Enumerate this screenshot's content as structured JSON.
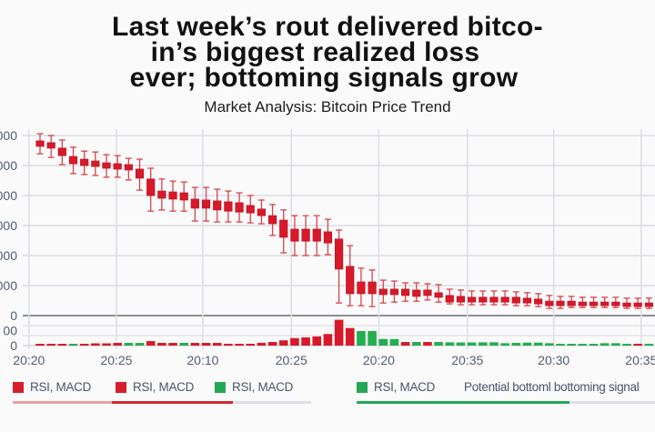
{
  "header": {
    "title_lines": [
      "Last week’s rout delivered bitco-",
      "in’s biggest realized loss",
      "ever; bottoming signals grow"
    ],
    "subtitle": "Market Analysis: Bitcoin Price Trend"
  },
  "colors": {
    "down": "#d7192a",
    "down_border": "#bf1422",
    "wick": "#d6434c",
    "up": "#23ae4f",
    "grid": "#dcdde6",
    "separator": "#8c8f97",
    "legend_red": "#d51f2b",
    "legend_green": "#24a853"
  },
  "legend": {
    "items": [
      {
        "label": "RSI, MACD",
        "color": "#d51f2b"
      },
      {
        "label": "RSI, MACD",
        "color": "#d51f2b"
      },
      {
        "label": "RSI, MACD",
        "color": "#24a853"
      },
      {
        "label": "RSI, MACD",
        "color": "#24a853"
      }
    ],
    "note": "Potential bottoml bottoming signal",
    "indicator_bars": [
      {
        "segments": [
          {
            "color": "#e8a1a6",
            "fraction": 0.333
          },
          {
            "color": "#d42a30",
            "fraction": 0.404
          },
          {
            "color": "#dedee4",
            "fraction": 0.263
          }
        ]
      },
      {
        "segments": [
          {
            "color": "#23a955",
            "fraction": 0.713
          },
          {
            "color": "#dedee4",
            "fraction": 0.287
          }
        ]
      }
    ]
  },
  "chart_data": {
    "type": "bar",
    "variant": "candlestick-with-volume",
    "title": "Last week’s rout delivered bitcoin’s biggest realized loss ever; bottoming signals grow",
    "subtitle": "Market Analysis: Bitcoin Price Trend",
    "grid": true,
    "xlim": [
      -1.6,
      55.4
    ],
    "x_ticks": [
      {
        "at": -1,
        "label": "20:20"
      },
      {
        "at": 6.9,
        "label": "20:25"
      },
      {
        "at": 14.7,
        "label": "20:10"
      },
      {
        "at": 22.7,
        "label": "20:25"
      },
      {
        "at": 30.6,
        "label": "20:20"
      },
      {
        "at": 38.6,
        "label": "20:35"
      },
      {
        "at": 46.4,
        "label": "20:30"
      },
      {
        "at": 54.3,
        "label": "20:35"
      }
    ],
    "price_axis": {
      "unit_note": "tick labels truncated at left edge; values in grid units",
      "ylim": [
        0,
        6.3
      ],
      "ticks": [
        {
          "value": 6,
          "label": "000"
        },
        {
          "value": 5,
          "label": "000"
        },
        {
          "value": 4,
          "label": "000"
        },
        {
          "value": 3,
          "label": "000"
        },
        {
          "value": 2,
          "label": "000"
        },
        {
          "value": 1,
          "label": "000"
        },
        {
          "value": 0,
          "label": "0"
        }
      ]
    },
    "volume_axis": {
      "ylim": [
        0,
        2
      ],
      "ticks": [
        {
          "value": 1,
          "label": "00"
        },
        {
          "value": 0,
          "label": "0"
        }
      ],
      "gridlines": [
        0.67,
        1.33
      ]
    },
    "candles_ohlc": [
      [
        5.82,
        6.06,
        5.39,
        5.64
      ],
      [
        5.76,
        6.0,
        5.27,
        5.58
      ],
      [
        5.58,
        5.85,
        5.03,
        5.33
      ],
      [
        5.3,
        5.61,
        4.73,
        5.06
      ],
      [
        5.21,
        5.48,
        4.7,
        5.0
      ],
      [
        5.15,
        5.45,
        4.67,
        4.97
      ],
      [
        5.09,
        5.36,
        4.61,
        4.91
      ],
      [
        5.06,
        5.33,
        4.61,
        4.88
      ],
      [
        5.03,
        5.24,
        4.52,
        4.85
      ],
      [
        4.88,
        5.21,
        4.18,
        4.58
      ],
      [
        4.55,
        4.91,
        3.48,
        4.0
      ],
      [
        4.15,
        4.55,
        3.52,
        3.91
      ],
      [
        4.12,
        4.48,
        3.48,
        3.88
      ],
      [
        4.09,
        4.45,
        3.48,
        3.85
      ],
      [
        3.88,
        4.27,
        3.15,
        3.58
      ],
      [
        3.85,
        4.27,
        3.15,
        3.58
      ],
      [
        3.82,
        4.21,
        3.12,
        3.52
      ],
      [
        3.79,
        4.15,
        3.12,
        3.48
      ],
      [
        3.76,
        4.09,
        3.12,
        3.45
      ],
      [
        3.67,
        4.0,
        3.09,
        3.42
      ],
      [
        3.55,
        3.85,
        3.06,
        3.33
      ],
      [
        3.33,
        3.7,
        2.67,
        3.06
      ],
      [
        3.18,
        3.52,
        2.09,
        2.61
      ],
      [
        2.88,
        3.33,
        2.0,
        2.48
      ],
      [
        2.88,
        3.33,
        2.0,
        2.48
      ],
      [
        2.88,
        3.33,
        2.0,
        2.48
      ],
      [
        2.79,
        3.21,
        2.03,
        2.42
      ],
      [
        2.55,
        2.85,
        0.42,
        1.55
      ],
      [
        1.64,
        2.33,
        0.33,
        0.73
      ],
      [
        1.12,
        1.58,
        0.33,
        0.73
      ],
      [
        1.12,
        1.52,
        0.3,
        0.73
      ],
      [
        0.88,
        1.18,
        0.42,
        0.7
      ],
      [
        0.88,
        1.15,
        0.45,
        0.7
      ],
      [
        0.88,
        1.09,
        0.48,
        0.67
      ],
      [
        0.85,
        1.09,
        0.48,
        0.64
      ],
      [
        0.85,
        1.06,
        0.52,
        0.67
      ],
      [
        0.76,
        1.03,
        0.45,
        0.61
      ],
      [
        0.67,
        0.88,
        0.39,
        0.45
      ],
      [
        0.64,
        0.85,
        0.36,
        0.45
      ],
      [
        0.61,
        0.82,
        0.36,
        0.45
      ],
      [
        0.61,
        0.82,
        0.36,
        0.45
      ],
      [
        0.61,
        0.82,
        0.36,
        0.45
      ],
      [
        0.61,
        0.82,
        0.36,
        0.45
      ],
      [
        0.61,
        0.79,
        0.33,
        0.42
      ],
      [
        0.58,
        0.76,
        0.33,
        0.42
      ],
      [
        0.55,
        0.73,
        0.3,
        0.39
      ],
      [
        0.48,
        0.67,
        0.24,
        0.33
      ],
      [
        0.48,
        0.64,
        0.24,
        0.33
      ],
      [
        0.48,
        0.64,
        0.27,
        0.33
      ],
      [
        0.45,
        0.61,
        0.27,
        0.33
      ],
      [
        0.45,
        0.61,
        0.27,
        0.33
      ],
      [
        0.45,
        0.61,
        0.27,
        0.33
      ],
      [
        0.45,
        0.61,
        0.27,
        0.33
      ],
      [
        0.42,
        0.58,
        0.24,
        0.3
      ],
      [
        0.42,
        0.58,
        0.24,
        0.3
      ],
      [
        0.42,
        0.58,
        0.24,
        0.3
      ]
    ],
    "volume": [
      {
        "v": 0.12,
        "dir": "down"
      },
      {
        "v": 0.12,
        "dir": "down"
      },
      {
        "v": 0.12,
        "dir": "down"
      },
      {
        "v": 0.12,
        "dir": "up"
      },
      {
        "v": 0.12,
        "dir": "down"
      },
      {
        "v": 0.15,
        "dir": "down"
      },
      {
        "v": 0.15,
        "dir": "down"
      },
      {
        "v": 0.18,
        "dir": "down"
      },
      {
        "v": 0.18,
        "dir": "up"
      },
      {
        "v": 0.18,
        "dir": "up"
      },
      {
        "v": 0.3,
        "dir": "down"
      },
      {
        "v": 0.18,
        "dir": "down"
      },
      {
        "v": 0.18,
        "dir": "down"
      },
      {
        "v": 0.18,
        "dir": "up"
      },
      {
        "v": 0.18,
        "dir": "down"
      },
      {
        "v": 0.18,
        "dir": "down"
      },
      {
        "v": 0.18,
        "dir": "down"
      },
      {
        "v": 0.12,
        "dir": "down"
      },
      {
        "v": 0.12,
        "dir": "down"
      },
      {
        "v": 0.12,
        "dir": "down"
      },
      {
        "v": 0.18,
        "dir": "down"
      },
      {
        "v": 0.24,
        "dir": "down"
      },
      {
        "v": 0.35,
        "dir": "down"
      },
      {
        "v": 0.5,
        "dir": "down"
      },
      {
        "v": 0.55,
        "dir": "down"
      },
      {
        "v": 0.61,
        "dir": "down"
      },
      {
        "v": 0.77,
        "dir": "down"
      },
      {
        "v": 1.72,
        "dir": "down"
      },
      {
        "v": 1.17,
        "dir": "down"
      },
      {
        "v": 0.97,
        "dir": "up"
      },
      {
        "v": 0.97,
        "dir": "up"
      },
      {
        "v": 0.44,
        "dir": "up"
      },
      {
        "v": 0.44,
        "dir": "up"
      },
      {
        "v": 0.24,
        "dir": "down"
      },
      {
        "v": 0.24,
        "dir": "up"
      },
      {
        "v": 0.24,
        "dir": "down"
      },
      {
        "v": 0.24,
        "dir": "up"
      },
      {
        "v": 0.22,
        "dir": "up"
      },
      {
        "v": 0.21,
        "dir": "up"
      },
      {
        "v": 0.21,
        "dir": "up"
      },
      {
        "v": 0.22,
        "dir": "up"
      },
      {
        "v": 0.22,
        "dir": "up"
      },
      {
        "v": 0.16,
        "dir": "up"
      },
      {
        "v": 0.18,
        "dir": "up"
      },
      {
        "v": 0.2,
        "dir": "up"
      },
      {
        "v": 0.2,
        "dir": "up"
      },
      {
        "v": 0.16,
        "dir": "up"
      },
      {
        "v": 0.12,
        "dir": "up"
      },
      {
        "v": 0.12,
        "dir": "up"
      },
      {
        "v": 0.12,
        "dir": "up"
      },
      {
        "v": 0.12,
        "dir": "up"
      },
      {
        "v": 0.16,
        "dir": "up"
      },
      {
        "v": 0.16,
        "dir": "up"
      },
      {
        "v": 0.12,
        "dir": "up"
      },
      {
        "v": 0.12,
        "dir": "down"
      },
      {
        "v": 0.12,
        "dir": "up"
      }
    ],
    "legend_placement": "bottom"
  }
}
